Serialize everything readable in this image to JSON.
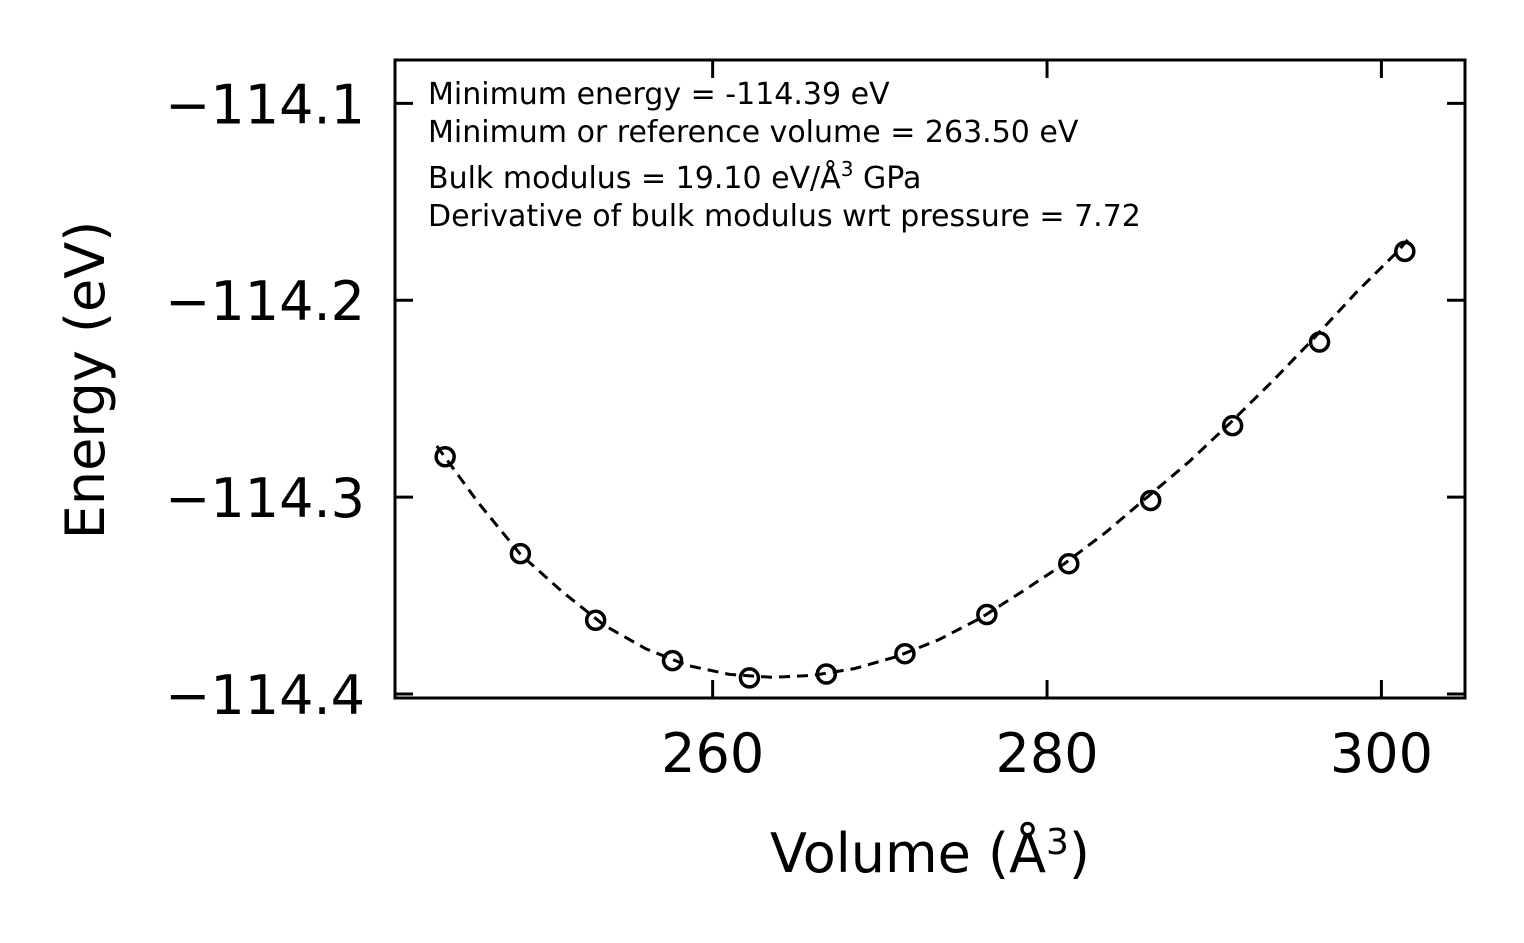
{
  "chart_data": {
    "type": "scatter",
    "xlabel": "Volume (Å",
    "xlabel_sup": "3",
    "xlabel_tail": ")",
    "ylabel": "Energy (eV)",
    "xlim": [
      241,
      305
    ],
    "ylim": [
      -114.402,
      -114.078
    ],
    "xticks": [
      260,
      280,
      300
    ],
    "xtick_labels": [
      "260",
      "280",
      "300"
    ],
    "yticks": [
      -114.1,
      -114.2,
      -114.3,
      -114.4
    ],
    "ytick_labels": [
      "−114.1",
      "−114.2",
      "−114.3",
      "−114.4"
    ],
    "series": [
      {
        "name": "data points",
        "marker": "open-circle",
        "x": [
          244.0,
          248.5,
          253.0,
          257.6,
          262.2,
          266.8,
          271.5,
          276.4,
          281.3,
          286.2,
          291.1,
          296.3,
          301.4
        ],
        "y": [
          -114.2795,
          -114.3287,
          -114.3625,
          -114.383,
          -114.3918,
          -114.3898,
          -114.3795,
          -114.3596,
          -114.3338,
          -114.3017,
          -114.2637,
          -114.2212,
          -114.1752
        ]
      },
      {
        "name": "fit",
        "style": "dashed",
        "x": [
          243.5,
          246,
          248.5,
          251,
          253.5,
          256,
          258.5,
          261,
          263.5,
          266,
          268.5,
          271,
          273.5,
          276,
          278.5,
          281,
          283.5,
          286,
          288.5,
          291,
          293.5,
          296,
          298.5,
          301,
          301.8
        ],
        "y": [
          -114.274,
          -114.303,
          -114.329,
          -114.348,
          -114.365,
          -114.377,
          -114.3855,
          -114.39,
          -114.3915,
          -114.3905,
          -114.387,
          -114.381,
          -114.3725,
          -114.3615,
          -114.348,
          -114.334,
          -114.318,
          -114.3,
          -114.282,
          -114.262,
          -114.241,
          -114.219,
          -114.196,
          -114.175,
          -114.167
        ]
      }
    ],
    "annotations": [
      {
        "text": "Minimum energy = -114.39 eV"
      },
      {
        "text": "Minimum or reference volume = 263.50 eV"
      },
      {
        "text": "Bulk modulus = 19.10 eV/Å",
        "sup": "3",
        "tail": " GPa"
      },
      {
        "text": "Derivative of bulk modulus wrt pressure = 7.72"
      }
    ],
    "grid": false
  }
}
